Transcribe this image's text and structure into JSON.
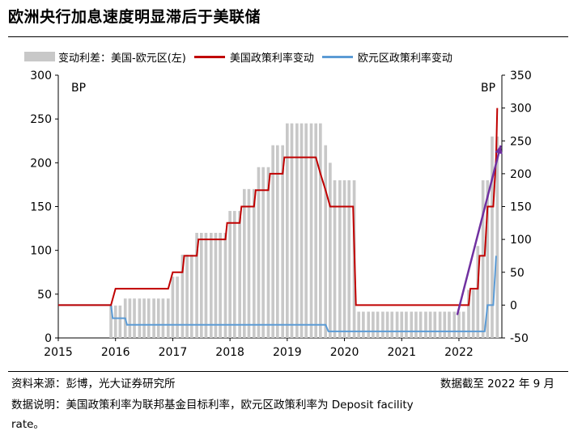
{
  "title": "欧洲央行加息速度明显滞后于美联储",
  "legend": {
    "spread": "变动利差：美国-欧元区(左)",
    "us": "美国政策利率变动",
    "eu": "欧元区政策利率变动"
  },
  "footer": {
    "source": "资料来源：彭博，光大证券研究所",
    "date_note": "数据截至 2022 年 9 月",
    "note_line1": "数据说明：美国政策利率为联邦基金目标利率，欧元区政策利率为 Deposit facility",
    "note_line2": "rate。"
  },
  "chart_data": {
    "type": "bar+line",
    "title": "欧洲央行加息速度明显滞后于美联储",
    "unit_left": "BP",
    "unit_right": "BP",
    "x_ticks": [
      "2015",
      "2016",
      "2017",
      "2018",
      "2019",
      "2020",
      "2021",
      "2022"
    ],
    "x_range": [
      2015.0,
      2022.75
    ],
    "left_axis": {
      "min": 0,
      "max": 300,
      "ticks": [
        0,
        50,
        100,
        150,
        200,
        250,
        300
      ]
    },
    "right_axis": {
      "min": -50,
      "max": 350,
      "ticks": [
        -50,
        0,
        50,
        100,
        150,
        200,
        250,
        300,
        350
      ]
    },
    "colors": {
      "spread": "#c8c8c8",
      "us": "#c00000",
      "eu": "#5b9bd5",
      "arrow": "#7030a0"
    },
    "spread_bars": [
      [
        2015.92,
        37
      ],
      [
        2016.0,
        37
      ],
      [
        2016.08,
        37
      ],
      [
        2016.17,
        45
      ],
      [
        2016.25,
        45
      ],
      [
        2016.33,
        45
      ],
      [
        2016.42,
        45
      ],
      [
        2016.5,
        45
      ],
      [
        2016.58,
        45
      ],
      [
        2016.67,
        45
      ],
      [
        2016.75,
        45
      ],
      [
        2016.83,
        45
      ],
      [
        2016.92,
        45
      ],
      [
        2017.0,
        70
      ],
      [
        2017.08,
        70
      ],
      [
        2017.17,
        95
      ],
      [
        2017.25,
        95
      ],
      [
        2017.33,
        95
      ],
      [
        2017.42,
        120
      ],
      [
        2017.5,
        120
      ],
      [
        2017.58,
        120
      ],
      [
        2017.67,
        120
      ],
      [
        2017.75,
        120
      ],
      [
        2017.83,
        120
      ],
      [
        2017.92,
        120
      ],
      [
        2018.0,
        145
      ],
      [
        2018.08,
        145
      ],
      [
        2018.17,
        145
      ],
      [
        2018.25,
        170
      ],
      [
        2018.33,
        170
      ],
      [
        2018.42,
        170
      ],
      [
        2018.5,
        195
      ],
      [
        2018.58,
        195
      ],
      [
        2018.67,
        195
      ],
      [
        2018.75,
        220
      ],
      [
        2018.83,
        220
      ],
      [
        2018.92,
        220
      ],
      [
        2019.0,
        245
      ],
      [
        2019.08,
        245
      ],
      [
        2019.17,
        245
      ],
      [
        2019.25,
        245
      ],
      [
        2019.33,
        245
      ],
      [
        2019.42,
        245
      ],
      [
        2019.5,
        245
      ],
      [
        2019.58,
        245
      ],
      [
        2019.67,
        220
      ],
      [
        2019.75,
        200
      ],
      [
        2019.83,
        180
      ],
      [
        2019.92,
        180
      ],
      [
        2020.0,
        180
      ],
      [
        2020.08,
        180
      ],
      [
        2020.17,
        180
      ],
      [
        2020.25,
        30
      ],
      [
        2020.33,
        30
      ],
      [
        2020.42,
        30
      ],
      [
        2020.5,
        30
      ],
      [
        2020.58,
        30
      ],
      [
        2020.67,
        30
      ],
      [
        2020.75,
        30
      ],
      [
        2020.83,
        30
      ],
      [
        2020.92,
        30
      ],
      [
        2021.0,
        30
      ],
      [
        2021.08,
        30
      ],
      [
        2021.17,
        30
      ],
      [
        2021.25,
        30
      ],
      [
        2021.33,
        30
      ],
      [
        2021.42,
        30
      ],
      [
        2021.5,
        30
      ],
      [
        2021.58,
        30
      ],
      [
        2021.67,
        30
      ],
      [
        2021.75,
        30
      ],
      [
        2021.83,
        30
      ],
      [
        2021.92,
        30
      ],
      [
        2022.0,
        30
      ],
      [
        2022.08,
        30
      ],
      [
        2022.17,
        55
      ],
      [
        2022.25,
        55
      ],
      [
        2022.33,
        105
      ],
      [
        2022.42,
        180
      ],
      [
        2022.5,
        180
      ],
      [
        2022.58,
        230
      ],
      [
        2022.67,
        230
      ]
    ],
    "us_line": [
      [
        2015.0,
        0
      ],
      [
        2015.92,
        0
      ],
      [
        2016.0,
        25
      ],
      [
        2016.92,
        25
      ],
      [
        2017.0,
        50
      ],
      [
        2017.17,
        50
      ],
      [
        2017.2,
        75
      ],
      [
        2017.42,
        75
      ],
      [
        2017.45,
        100
      ],
      [
        2017.92,
        100
      ],
      [
        2017.95,
        125
      ],
      [
        2018.17,
        125
      ],
      [
        2018.2,
        150
      ],
      [
        2018.42,
        150
      ],
      [
        2018.45,
        175
      ],
      [
        2018.67,
        175
      ],
      [
        2018.7,
        200
      ],
      [
        2018.92,
        200
      ],
      [
        2018.95,
        225
      ],
      [
        2019.5,
        225
      ],
      [
        2019.58,
        200
      ],
      [
        2019.67,
        175
      ],
      [
        2019.75,
        150
      ],
      [
        2020.15,
        150
      ],
      [
        2020.2,
        0
      ],
      [
        2022.17,
        0
      ],
      [
        2022.2,
        25
      ],
      [
        2022.33,
        25
      ],
      [
        2022.36,
        75
      ],
      [
        2022.45,
        75
      ],
      [
        2022.5,
        150
      ],
      [
        2022.6,
        150
      ],
      [
        2022.65,
        225
      ],
      [
        2022.67,
        300
      ]
    ],
    "eu_line": [
      [
        2015.0,
        0
      ],
      [
        2015.92,
        0
      ],
      [
        2015.95,
        -20
      ],
      [
        2016.17,
        -20
      ],
      [
        2016.2,
        -30
      ],
      [
        2019.67,
        -30
      ],
      [
        2019.72,
        -40
      ],
      [
        2022.45,
        -40
      ],
      [
        2022.5,
        0
      ],
      [
        2022.6,
        0
      ],
      [
        2022.65,
        75
      ]
    ],
    "annotation_arrow": {
      "from": [
        2021.97,
        -15
      ],
      "to": [
        2022.73,
        243
      ],
      "axis": "right"
    }
  }
}
